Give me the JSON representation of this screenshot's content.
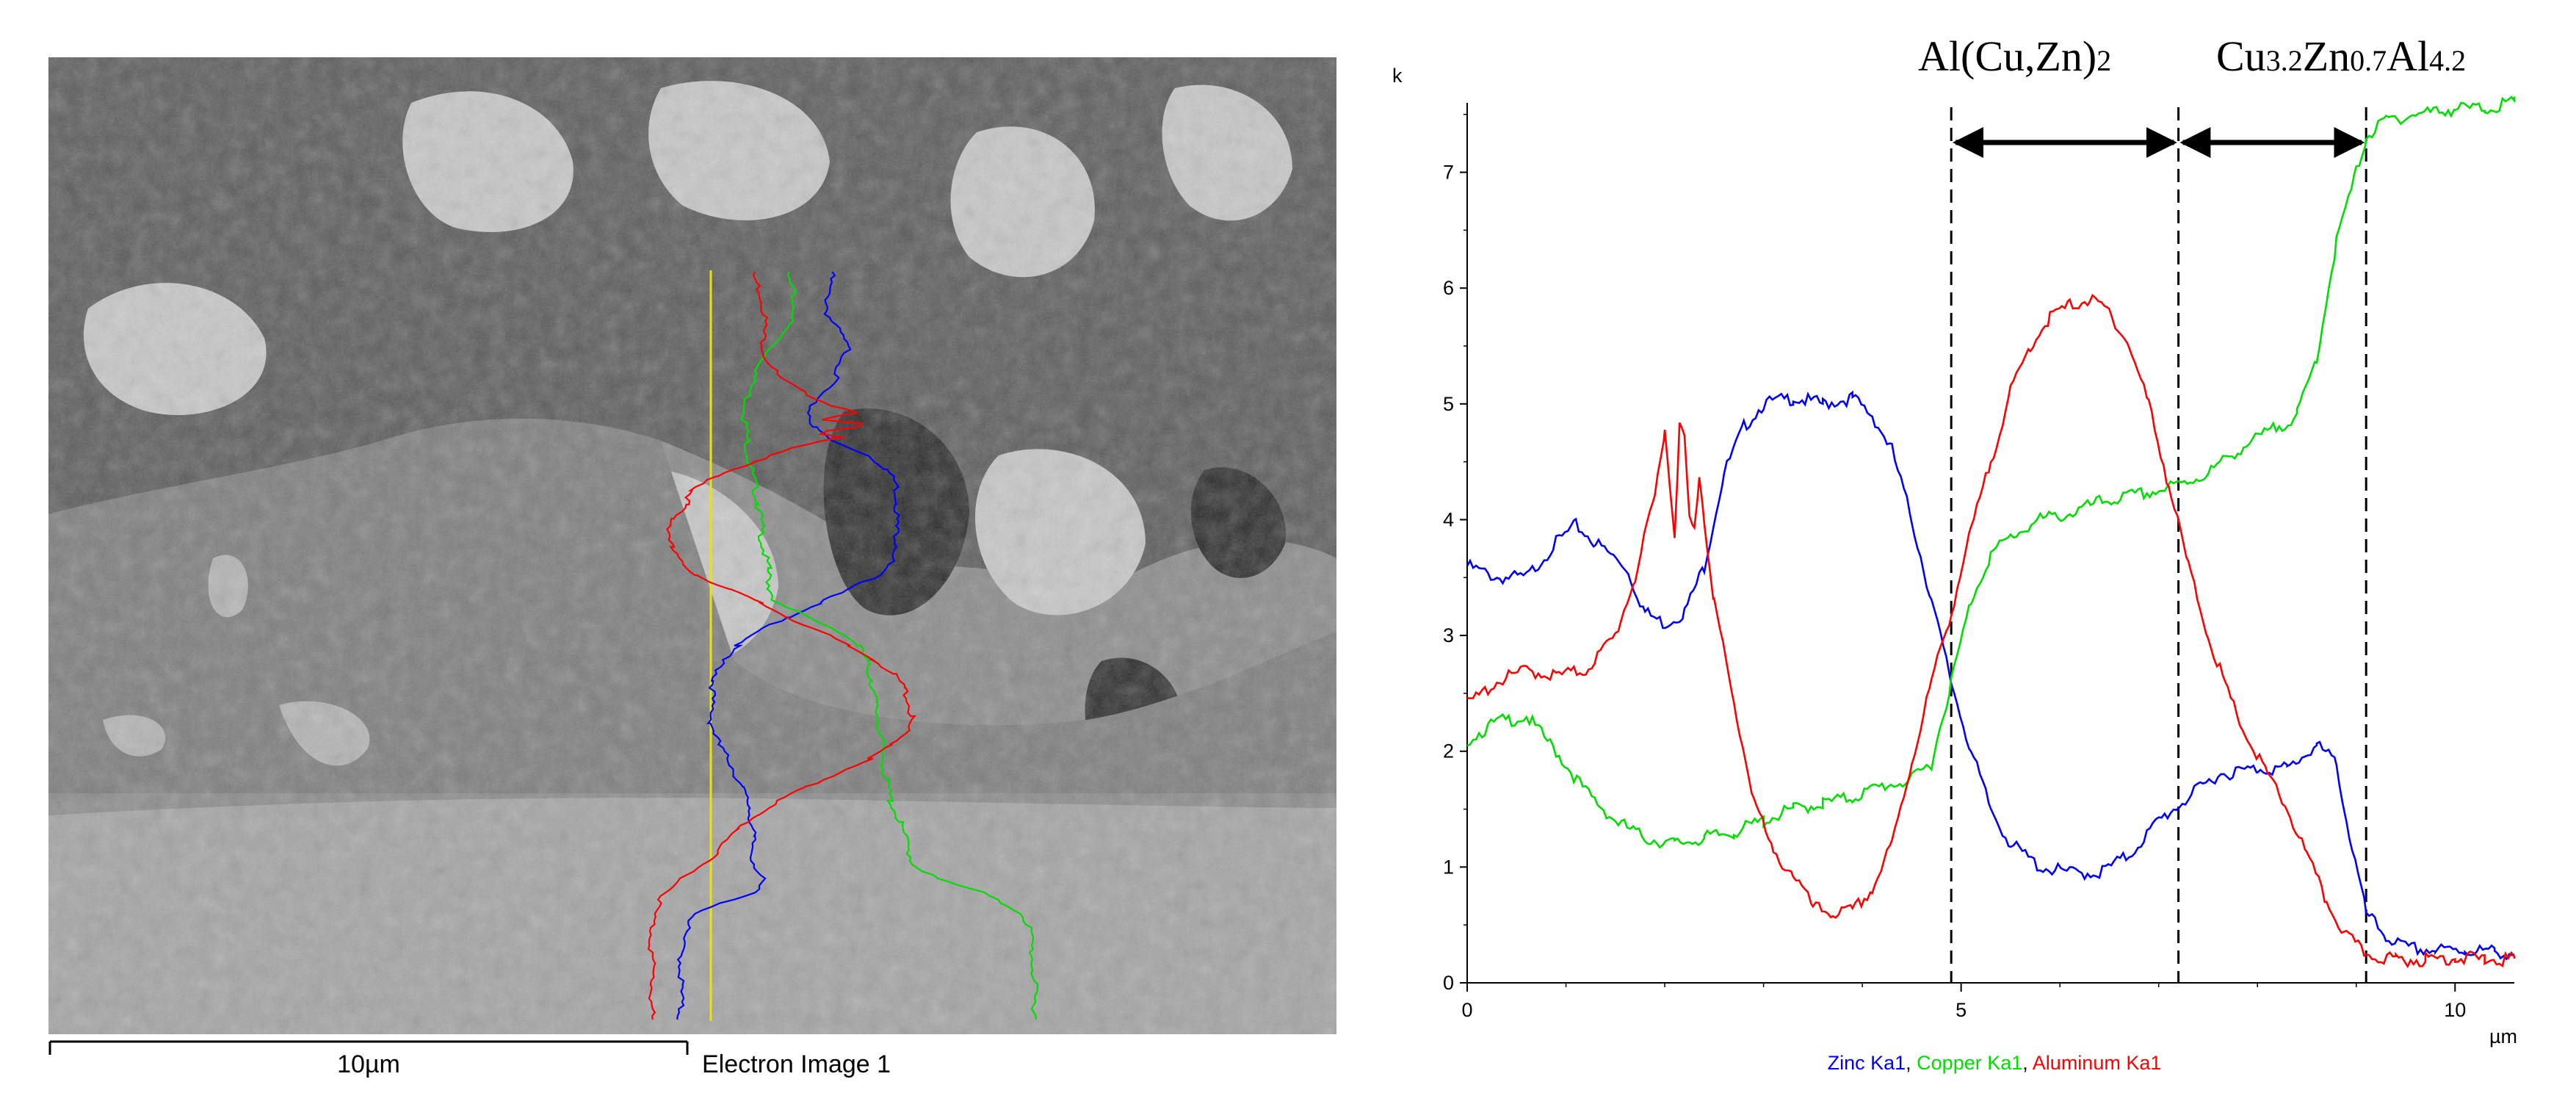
{
  "sem": {
    "scale_label": "10µm",
    "image_caption": "Electron Image 1"
  },
  "phase_labels": {
    "left": {
      "base": "Al(Cu,Zn)",
      "sub": "2"
    },
    "right": [
      {
        "text": "Cu",
        "sub": false
      },
      {
        "text": "3.2",
        "sub": true
      },
      {
        "text": "Zn",
        "sub": false
      },
      {
        "text": "0.7",
        "sub": true
      },
      {
        "text": "Al",
        "sub": false
      },
      {
        "text": "4.2",
        "sub": true
      }
    ]
  },
  "colors": {
    "zinc": "#0000ff",
    "copper": "#00dd00",
    "aluminum": "#ff0000",
    "scan_line": "#e6e600"
  },
  "chart_data": {
    "type": "line",
    "ylabel": "k",
    "xunit": "µm",
    "xlim": [
      0,
      10.6
    ],
    "ylim": [
      0,
      7.6
    ],
    "xticks": [
      0,
      5,
      10
    ],
    "yticks": [
      0,
      1,
      2,
      3,
      4,
      5,
      6,
      7
    ],
    "phase_boundaries": [
      4.9,
      7.2,
      9.1
    ],
    "legend": [
      {
        "text": "Zinc Ka1",
        "color": "#0000ff",
        "sep": ", "
      },
      {
        "text": "Copper Ka1",
        "color": "#00dd00",
        "sep": ", "
      },
      {
        "text": "Aluminum Ka1",
        "color": "#ff0000",
        "sep": ""
      }
    ],
    "series": [
      {
        "name": "Zinc Ka1",
        "color": "#0000ff",
        "x": [
          0,
          0.3,
          0.6,
          0.9,
          1.1,
          1.3,
          1.6,
          1.8,
          2.0,
          2.2,
          2.4,
          2.6,
          2.8,
          3.0,
          3.3,
          3.6,
          3.9,
          4.1,
          4.3,
          4.5,
          4.7,
          4.9,
          5.1,
          5.3,
          5.5,
          5.8,
          6.1,
          6.4,
          6.7,
          7.0,
          7.3,
          7.6,
          8.0,
          8.3,
          8.6,
          8.8,
          8.9,
          9.1,
          9.3,
          9.5,
          9.8,
          10.1,
          10.4,
          10.6
        ],
        "y": [
          3.6,
          3.5,
          3.5,
          3.8,
          3.95,
          3.8,
          3.6,
          3.2,
          3.1,
          3.2,
          3.6,
          4.4,
          4.8,
          5.0,
          5.05,
          5.0,
          5.05,
          4.9,
          4.6,
          4.0,
          3.3,
          2.6,
          2.0,
          1.5,
          1.2,
          1.0,
          0.95,
          0.95,
          1.1,
          1.4,
          1.6,
          1.8,
          1.85,
          1.85,
          2.05,
          1.9,
          1.4,
          0.6,
          0.4,
          0.3,
          0.28,
          0.28,
          0.27,
          0.25
        ]
      },
      {
        "name": "Copper Ka1",
        "color": "#00dd00",
        "x": [
          0,
          0.3,
          0.6,
          0.9,
          1.2,
          1.5,
          1.8,
          2.1,
          2.4,
          2.7,
          3.0,
          3.3,
          3.6,
          3.9,
          4.2,
          4.5,
          4.7,
          4.9,
          5.1,
          5.3,
          5.5,
          5.8,
          6.1,
          6.4,
          6.7,
          7.0,
          7.2,
          7.5,
          7.8,
          8.1,
          8.4,
          8.6,
          8.8,
          9.0,
          9.1,
          9.3,
          9.6,
          10.0,
          10.3,
          10.6
        ],
        "y": [
          2.1,
          2.25,
          2.3,
          2.0,
          1.65,
          1.4,
          1.25,
          1.2,
          1.25,
          1.3,
          1.4,
          1.5,
          1.55,
          1.6,
          1.7,
          1.75,
          1.9,
          2.6,
          3.3,
          3.7,
          3.85,
          4.0,
          4.05,
          4.15,
          4.2,
          4.25,
          4.3,
          4.4,
          4.6,
          4.75,
          4.9,
          5.4,
          6.4,
          7.0,
          7.3,
          7.45,
          7.5,
          7.55,
          7.55,
          7.6
        ]
      },
      {
        "name": "Aluminum Ka1",
        "color": "#ff0000",
        "x": [
          0,
          0.3,
          0.6,
          0.9,
          1.2,
          1.5,
          1.7,
          1.9,
          2.0,
          2.05,
          2.1,
          2.15,
          2.2,
          2.25,
          2.3,
          2.35,
          2.4,
          2.5,
          2.7,
          2.9,
          3.1,
          3.3,
          3.5,
          3.7,
          3.9,
          4.1,
          4.3,
          4.5,
          4.7,
          4.9,
          5.1,
          5.3,
          5.5,
          5.7,
          5.9,
          6.1,
          6.3,
          6.5,
          6.7,
          6.9,
          7.1,
          7.3,
          7.5,
          7.7,
          7.9,
          8.1,
          8.3,
          8.5,
          8.7,
          8.9,
          9.1,
          9.4,
          9.7,
          10.0,
          10.3,
          10.6
        ],
        "y": [
          2.4,
          2.6,
          2.7,
          2.65,
          2.7,
          3.0,
          3.5,
          4.2,
          4.8,
          4.3,
          3.9,
          4.8,
          4.7,
          4.0,
          3.9,
          4.4,
          4.0,
          3.3,
          2.4,
          1.6,
          1.1,
          0.95,
          0.65,
          0.6,
          0.62,
          0.8,
          1.2,
          1.9,
          2.6,
          3.2,
          3.9,
          4.5,
          5.1,
          5.5,
          5.75,
          5.85,
          5.9,
          5.8,
          5.5,
          5.0,
          4.3,
          3.6,
          3.0,
          2.5,
          2.1,
          1.8,
          1.5,
          1.1,
          0.7,
          0.4,
          0.25,
          0.2,
          0.2,
          0.22,
          0.2,
          0.2
        ]
      }
    ]
  }
}
